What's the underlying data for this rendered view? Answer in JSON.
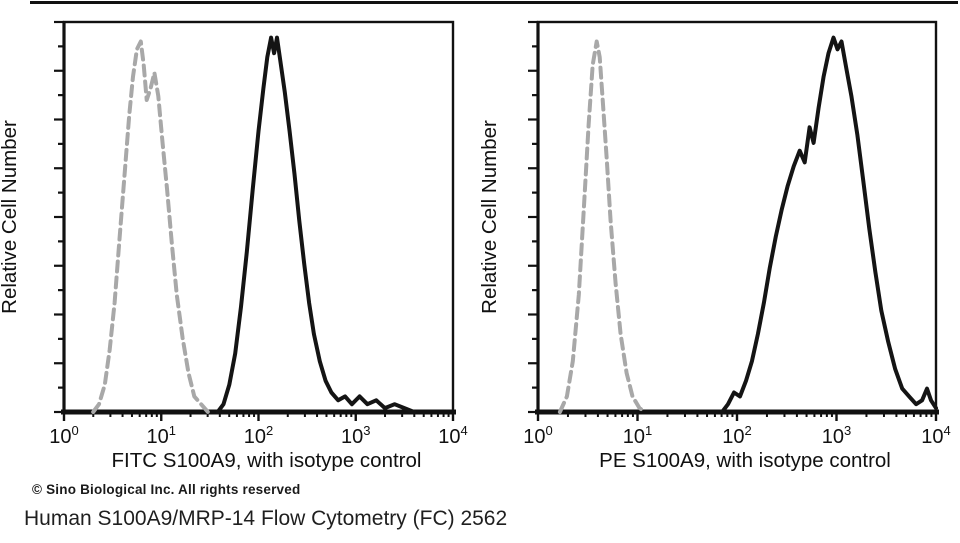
{
  "page": {
    "background": "#ffffff",
    "copyright": "© Sino Biological Inc. All rights reserved",
    "caption": "Human S100A9/MRP-14 Flow Cytometry (FC) 2562"
  },
  "chart_data": [
    {
      "type": "line",
      "subtype": "flow-cytometry-histogram-overlay",
      "title": "",
      "xlabel": "FITC  S100A9,  with isotype control",
      "ylabel": "Relative Cell Number",
      "x_scale": "log10",
      "xlim": [
        1,
        10000
      ],
      "x_tick_labels": [
        "10^0",
        "10^1",
        "10^2",
        "10^3",
        "10^4"
      ],
      "x_minor_ticks_per_decade": [
        2,
        3,
        4,
        5,
        6,
        7,
        8,
        9
      ],
      "ylim": [
        0,
        1
      ],
      "y_tick_labels": [],
      "grid": false,
      "legend_position": "none",
      "axis_color": "#111111",
      "points_format": "[log10(x), relative_cell_count_fraction]",
      "series": [
        {
          "name": "isotype control",
          "line_style": "dashed",
          "color": "#a8a8a8",
          "peak_x_approx": 7,
          "peak_height_fraction": 0.95,
          "points": [
            [
              0.3,
              0
            ],
            [
              0.36,
              0.02
            ],
            [
              0.42,
              0.07
            ],
            [
              0.47,
              0.16
            ],
            [
              0.52,
              0.28
            ],
            [
              0.57,
              0.44
            ],
            [
              0.62,
              0.6
            ],
            [
              0.67,
              0.76
            ],
            [
              0.71,
              0.86
            ],
            [
              0.75,
              0.93
            ],
            [
              0.79,
              0.95
            ],
            [
              0.82,
              0.89
            ],
            [
              0.85,
              0.8
            ],
            [
              0.89,
              0.83
            ],
            [
              0.93,
              0.87
            ],
            [
              0.97,
              0.81
            ],
            [
              1.01,
              0.7
            ],
            [
              1.06,
              0.57
            ],
            [
              1.11,
              0.43
            ],
            [
              1.16,
              0.3
            ],
            [
              1.22,
              0.19
            ],
            [
              1.28,
              0.1
            ],
            [
              1.34,
              0.04
            ],
            [
              1.41,
              0.02
            ],
            [
              1.48,
              0
            ]
          ]
        },
        {
          "name": "S100A9 (FITC)",
          "line_style": "solid",
          "color": "#141414",
          "peak_x_approx": 170,
          "peak_height_fraction": 0.96,
          "points": [
            [
              1.58,
              0
            ],
            [
              1.64,
              0.02
            ],
            [
              1.7,
              0.07
            ],
            [
              1.76,
              0.15
            ],
            [
              1.82,
              0.27
            ],
            [
              1.88,
              0.41
            ],
            [
              1.94,
              0.57
            ],
            [
              2.0,
              0.72
            ],
            [
              2.05,
              0.83
            ],
            [
              2.09,
              0.91
            ],
            [
              2.13,
              0.96
            ],
            [
              2.16,
              0.92
            ],
            [
              2.19,
              0.96
            ],
            [
              2.23,
              0.89
            ],
            [
              2.27,
              0.82
            ],
            [
              2.32,
              0.72
            ],
            [
              2.37,
              0.61
            ],
            [
              2.42,
              0.49
            ],
            [
              2.47,
              0.38
            ],
            [
              2.52,
              0.28
            ],
            [
              2.57,
              0.2
            ],
            [
              2.63,
              0.13
            ],
            [
              2.69,
              0.08
            ],
            [
              2.75,
              0.05
            ],
            [
              2.82,
              0.03
            ],
            [
              2.89,
              0.04
            ],
            [
              2.96,
              0.02
            ],
            [
              3.04,
              0.04
            ],
            [
              3.12,
              0.02
            ],
            [
              3.21,
              0.03
            ],
            [
              3.3,
              0.01
            ],
            [
              3.4,
              0.02
            ],
            [
              3.5,
              0.01
            ],
            [
              3.6,
              0
            ]
          ]
        }
      ]
    },
    {
      "type": "line",
      "subtype": "flow-cytometry-histogram-overlay",
      "title": "",
      "xlabel": "PE  S100A9,  with isotype control",
      "ylabel": "Relative Cell Number",
      "x_scale": "log10",
      "xlim": [
        1,
        10000
      ],
      "x_tick_labels": [
        "10^0",
        "10^1",
        "10^2",
        "10^3",
        "10^4"
      ],
      "x_minor_ticks_per_decade": [
        2,
        3,
        4,
        5,
        6,
        7,
        8,
        9
      ],
      "ylim": [
        0,
        1
      ],
      "y_tick_labels": [],
      "grid": false,
      "legend_position": "none",
      "axis_color": "#111111",
      "points_format": "[log10(x), relative_cell_count_fraction]",
      "series": [
        {
          "name": "isotype control",
          "line_style": "dashed",
          "color": "#a8a8a8",
          "peak_x_approx": 4,
          "peak_height_fraction": 0.95,
          "points": [
            [
              0.22,
              0
            ],
            [
              0.29,
              0.04
            ],
            [
              0.35,
              0.13
            ],
            [
              0.41,
              0.3
            ],
            [
              0.46,
              0.52
            ],
            [
              0.51,
              0.74
            ],
            [
              0.55,
              0.89
            ],
            [
              0.59,
              0.95
            ],
            [
              0.62,
              0.91
            ],
            [
              0.65,
              0.8
            ],
            [
              0.69,
              0.65
            ],
            [
              0.73,
              0.49
            ],
            [
              0.78,
              0.33
            ],
            [
              0.83,
              0.2
            ],
            [
              0.89,
              0.1
            ],
            [
              0.95,
              0.04
            ],
            [
              1.02,
              0.01
            ],
            [
              1.08,
              0
            ]
          ]
        },
        {
          "name": "S100A9 (PE)",
          "line_style": "solid",
          "color": "#141414",
          "peak_x_approx": 1000,
          "peak_height_fraction": 0.96,
          "points": [
            [
              1.85,
              0
            ],
            [
              1.91,
              0.02
            ],
            [
              1.97,
              0.05
            ],
            [
              2.03,
              0.04
            ],
            [
              2.09,
              0.08
            ],
            [
              2.15,
              0.13
            ],
            [
              2.21,
              0.2
            ],
            [
              2.27,
              0.28
            ],
            [
              2.33,
              0.37
            ],
            [
              2.39,
              0.45
            ],
            [
              2.45,
              0.52
            ],
            [
              2.51,
              0.58
            ],
            [
              2.57,
              0.63
            ],
            [
              2.63,
              0.67
            ],
            [
              2.68,
              0.64
            ],
            [
              2.73,
              0.73
            ],
            [
              2.77,
              0.69
            ],
            [
              2.82,
              0.78
            ],
            [
              2.87,
              0.86
            ],
            [
              2.92,
              0.92
            ],
            [
              2.97,
              0.96
            ],
            [
              3.01,
              0.93
            ],
            [
              3.05,
              0.95
            ],
            [
              3.1,
              0.88
            ],
            [
              3.15,
              0.81
            ],
            [
              3.21,
              0.71
            ],
            [
              3.27,
              0.59
            ],
            [
              3.33,
              0.47
            ],
            [
              3.39,
              0.36
            ],
            [
              3.45,
              0.26
            ],
            [
              3.52,
              0.18
            ],
            [
              3.59,
              0.11
            ],
            [
              3.66,
              0.06
            ],
            [
              3.73,
              0.04
            ],
            [
              3.8,
              0.02
            ],
            [
              3.86,
              0.03
            ],
            [
              3.91,
              0.06
            ],
            [
              3.95,
              0.03
            ],
            [
              4.0,
              0.01
            ]
          ]
        }
      ]
    }
  ]
}
